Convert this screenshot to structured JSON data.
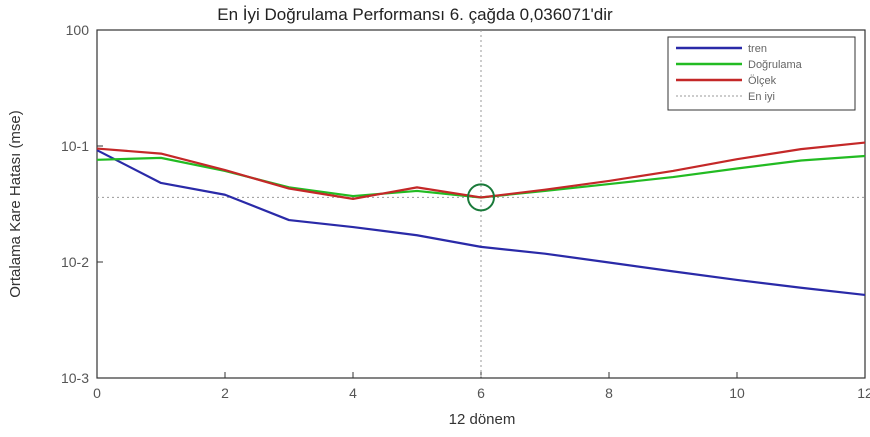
{
  "chart_data": {
    "type": "line",
    "title": "En İyi Doğrulama Performansı 6. çağda 0,036071'dir",
    "xlabel": "12 dönem",
    "ylabel": "Ortalama Kare Hatası (mse)",
    "y_scale": "log",
    "xlim": [
      0,
      12
    ],
    "ylim": [
      0.001,
      1
    ],
    "x_ticks": [
      "0",
      "2",
      "4",
      "6",
      "8",
      "10",
      "12"
    ],
    "y_ticks": [
      "100",
      "10-1",
      "10-2",
      "10-3"
    ],
    "x": [
      0,
      1,
      2,
      3,
      4,
      5,
      6,
      7,
      8,
      9,
      10,
      11,
      12
    ],
    "series": [
      {
        "name": "tren",
        "color": "#2a2aa8",
        "values": [
          0.092,
          0.048,
          0.038,
          0.023,
          0.02,
          0.017,
          0.0135,
          0.0118,
          0.0099,
          0.0083,
          0.007,
          0.006,
          0.0052
        ]
      },
      {
        "name": "Doğrulama",
        "color": "#22bb22",
        "values": [
          0.076,
          0.079,
          0.061,
          0.044,
          0.037,
          0.041,
          0.036,
          0.041,
          0.047,
          0.054,
          0.064,
          0.075,
          0.082
        ]
      },
      {
        "name": "Ölçek",
        "color": "#c42828",
        "values": [
          0.095,
          0.086,
          0.062,
          0.043,
          0.035,
          0.044,
          0.036,
          0.042,
          0.05,
          0.061,
          0.077,
          0.094,
          0.107
        ]
      }
    ],
    "best": {
      "name": "En iyi",
      "epoch": 6,
      "value": 0.036071,
      "color": "#999999"
    },
    "legend_position": "top-right",
    "grid": false
  }
}
